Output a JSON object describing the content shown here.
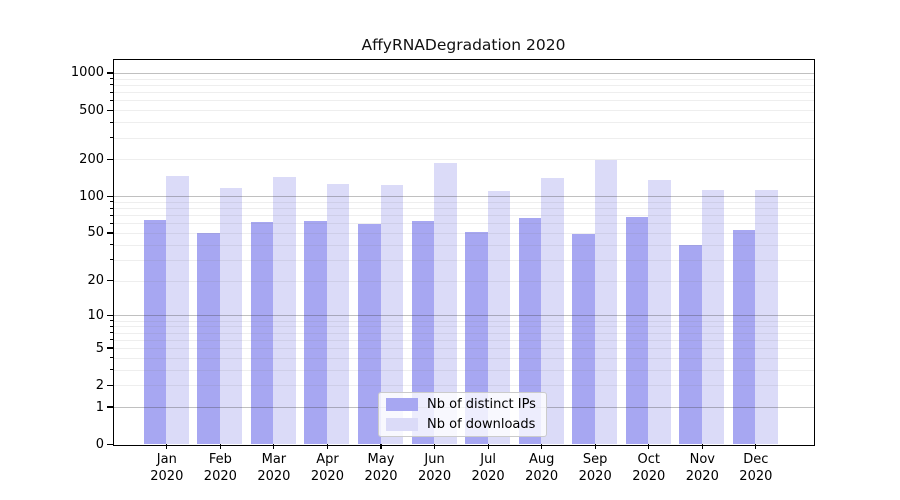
{
  "chart_data": {
    "type": "bar",
    "title": "AffyRNADegradation 2020",
    "categories": [
      "Jan",
      "Feb",
      "Mar",
      "Apr",
      "May",
      "Jun",
      "Jul",
      "Aug",
      "Sep",
      "Oct",
      "Nov",
      "Dec"
    ],
    "x_year_label": "2020",
    "series": [
      {
        "name": "Nb of distinct IPs",
        "color": "#a7a7f2",
        "values": [
          64,
          50,
          61,
          63,
          59,
          63,
          51,
          66,
          49,
          68,
          40,
          53
        ]
      },
      {
        "name": "Nb of downloads",
        "color": "#dbdbf8",
        "values": [
          147,
          116,
          144,
          125,
          123,
          186,
          110,
          142,
          196,
          135,
          112,
          112
        ]
      }
    ],
    "y_ticks": [
      0,
      1,
      2,
      5,
      10,
      20,
      50,
      100,
      200,
      500,
      1000
    ],
    "y_scale": "log10(value+1)",
    "ylim": [
      0,
      1300
    ],
    "xlabel": "",
    "ylabel": "",
    "grid": "horizontal",
    "grid_minor_values": [
      2,
      3,
      4,
      5,
      6,
      7,
      8,
      9,
      20,
      30,
      40,
      50,
      60,
      70,
      80,
      90,
      200,
      300,
      400,
      500,
      600,
      700,
      800,
      900
    ],
    "grid_major_values": [
      1,
      10,
      100,
      1000
    ],
    "legend": {
      "position": "bottom-center-inside",
      "entries": [
        "Nb of distinct IPs",
        "Nb of downloads"
      ]
    }
  }
}
